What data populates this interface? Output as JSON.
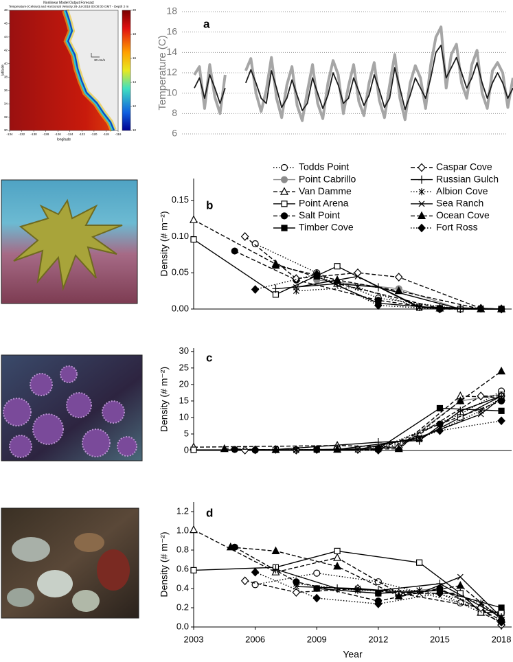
{
  "map": {
    "title": "Nonlinear Model Output Forecast",
    "subtitle": "Temperature (Celsius) and Horizontal Velocity 28-Jul-2018 00:00:00 GMT - Depth 2 m",
    "x_label": "longitude",
    "y_label": "latitude",
    "xticks": [
      -134,
      -132,
      -130,
      -128,
      -126,
      -124,
      -122,
      -120,
      -118,
      -116
    ],
    "yticks": [
      30,
      32,
      34,
      36,
      38,
      40,
      42,
      44,
      46,
      48
    ],
    "colorbar_ticks": [
      10,
      12,
      14,
      16,
      18,
      20
    ],
    "scale_label": "30 cm/s"
  },
  "chart_data": [
    {
      "type": "line",
      "panel_label": "a",
      "y_label": "Temperature (C)",
      "xlim": [
        2002.4,
        2018.2
      ],
      "ylim": [
        6,
        18
      ],
      "yticks": [
        6,
        8,
        10,
        12,
        14,
        16,
        18
      ],
      "grid": true,
      "x": [
        2003,
        2003.25,
        2003.5,
        2003.75,
        2004,
        2004.25,
        2004.5,
        2004.75,
        2005,
        2005.25,
        2005.5,
        2005.75,
        2006,
        2006.25,
        2006.5,
        2006.75,
        2007,
        2007.25,
        2007.5,
        2007.75,
        2008,
        2008.25,
        2008.5,
        2008.75,
        2009,
        2009.25,
        2009.5,
        2009.75,
        2010,
        2010.25,
        2010.5,
        2010.75,
        2011,
        2011.25,
        2011.5,
        2011.75,
        2012,
        2012.25,
        2012.5,
        2012.75,
        2013,
        2013.25,
        2013.5,
        2013.75,
        2014,
        2014.25,
        2014.5,
        2014.75,
        2015,
        2015.25,
        2015.5,
        2015.75,
        2016,
        2016.25,
        2016.5,
        2016.75,
        2017,
        2017.25,
        2017.5,
        2017.75,
        2018,
        2018.25,
        2018.5
      ],
      "series": [
        {
          "color": "#a6a6a6",
          "values": [
            11.8,
            12.6,
            8.5,
            12.8,
            9.6,
            8.0,
            11.8,
            null,
            null,
            null,
            12.2,
            13.4,
            10.0,
            8.2,
            10.3,
            13.5,
            9.5,
            7.6,
            10.8,
            12.6,
            8.8,
            7.3,
            10.2,
            12.8,
            9.0,
            7.5,
            11.0,
            13.2,
            11.8,
            8.0,
            10.7,
            12.8,
            9.2,
            7.8,
            11.0,
            13.0,
            9.3,
            7.6,
            10.8,
            13.8,
            9.5,
            7.4,
            11.0,
            12.7,
            11.5,
            8.5,
            12.8,
            15.5,
            16.5,
            10.5,
            13.8,
            14.8,
            11.0,
            9.5,
            12.8,
            14.2,
            10.0,
            8.5,
            12.2,
            13.0,
            12.0,
            8.6,
            11.5
          ]
        },
        {
          "color": "#1a1a1a",
          "values": [
            10.5,
            11.5,
            9.5,
            11.8,
            10.5,
            9.0,
            10.5,
            null,
            null,
            null,
            11.0,
            12.3,
            11.0,
            9.5,
            9.0,
            12.2,
            10.5,
            8.6,
            9.5,
            11.3,
            9.8,
            8.3,
            9.0,
            11.5,
            10.0,
            8.5,
            9.8,
            12.0,
            10.8,
            9.0,
            9.5,
            11.5,
            10.2,
            8.8,
            9.8,
            11.8,
            10.3,
            8.6,
            9.5,
            12.5,
            10.5,
            8.4,
            9.8,
            11.5,
            10.5,
            9.5,
            11.5,
            14.0,
            14.7,
            11.5,
            12.5,
            13.5,
            12.0,
            10.5,
            11.5,
            13.0,
            11.0,
            9.5,
            11.0,
            12.0,
            11.0,
            9.5,
            10.5
          ]
        }
      ]
    },
    {
      "type": "line",
      "panel_label": "b",
      "y_label": "Density (# m⁻²)",
      "xlim": [
        2003,
        2018.5
      ],
      "ylim": [
        0,
        0.18
      ],
      "yticks": [
        {
          "value": 0,
          "label": "0.00"
        },
        {
          "value": 0.05,
          "label": "0.05"
        },
        {
          "value": 0.1,
          "label": "0.10"
        },
        {
          "value": 0.15,
          "label": "0.15"
        }
      ],
      "series": [
        {
          "name": "Todds Point",
          "color": "#000000",
          "dash": "dotted",
          "marker": "circle-open",
          "x": [
            2006,
            2009,
            2012,
            2016,
            2018
          ],
          "values": [
            0.09,
            0.05,
            0.015,
            0,
            0
          ]
        },
        {
          "name": "Point Cabrillo",
          "color": "#8c8c8c",
          "dash": "solid",
          "marker": "circle",
          "x": [
            2009,
            2013,
            2016,
            2018
          ],
          "values": [
            0.04,
            0.028,
            0,
            0
          ]
        },
        {
          "name": "Van Damme",
          "color": "#000000",
          "dash": "dashed",
          "marker": "triangle-open",
          "x": [
            2003,
            2007,
            2010,
            2015,
            2017,
            2018
          ],
          "values": [
            0.123,
            0.062,
            0.035,
            0.001,
            0,
            0
          ]
        },
        {
          "name": "Point Arena",
          "color": "#000000",
          "dash": "solid",
          "marker": "square-open",
          "x": [
            2003,
            2007,
            2010,
            2014,
            2016,
            2018
          ],
          "values": [
            0.096,
            0.02,
            0.059,
            0.002,
            0,
            0
          ]
        },
        {
          "name": "Salt Point",
          "color": "#000000",
          "dash": "dashed",
          "marker": "circle",
          "x": [
            2005,
            2008,
            2012,
            2015,
            2018
          ],
          "values": [
            0.08,
            0.04,
            0.012,
            0,
            0
          ]
        },
        {
          "name": "Timber Cove",
          "color": "#000000",
          "dash": "solid",
          "marker": "square",
          "x": [
            2009,
            2012,
            2015,
            2018
          ],
          "values": [
            0.045,
            0.008,
            0.001,
            0
          ]
        },
        {
          "name": "Caspar Cove",
          "color": "#000000",
          "dash": "dashed",
          "marker": "diamond-open",
          "x": [
            2005.5,
            2008,
            2011,
            2013,
            2017,
            2018
          ],
          "values": [
            0.1,
            0.042,
            0.05,
            0.044,
            0.001,
            0
          ]
        },
        {
          "name": "Russian Gulch",
          "color": "#000000",
          "dash": "solid",
          "marker": "plus",
          "x": [
            2007,
            2010,
            2012,
            2016,
            2018
          ],
          "values": [
            0.028,
            0.035,
            0.03,
            0,
            0
          ]
        },
        {
          "name": "Albion Cove",
          "color": "#000000",
          "dash": "dotted",
          "marker": "asterisk",
          "x": [
            2008,
            2011,
            2014,
            2017,
            2018
          ],
          "values": [
            0.025,
            0.03,
            0.002,
            0,
            0
          ]
        },
        {
          "name": "Sea Ranch",
          "color": "#000000",
          "dash": "solid",
          "marker": "x",
          "x": [
            2008,
            2011,
            2014,
            2017,
            2018
          ],
          "values": [
            0.03,
            0.045,
            0.003,
            0.001,
            0
          ]
        },
        {
          "name": "Ocean Cove",
          "color": "#000000",
          "dash": "dashed",
          "marker": "triangle",
          "x": [
            2007,
            2010,
            2013,
            2017,
            2018
          ],
          "values": [
            0.06,
            0.04,
            0.025,
            0,
            0
          ]
        },
        {
          "name": "Fort Ross",
          "color": "#000000",
          "dash": "dotted",
          "marker": "diamond",
          "x": [
            2006,
            2009,
            2012,
            2015,
            2018
          ],
          "values": [
            0.027,
            0.048,
            0.005,
            0,
            0
          ]
        }
      ]
    },
    {
      "type": "line",
      "panel_label": "c",
      "y_label": "Density (# m⁻²)",
      "xlim": [
        2003,
        2018.5
      ],
      "ylim": [
        0,
        31
      ],
      "yticks": [
        0,
        5,
        10,
        15,
        20,
        25,
        30
      ],
      "series": [
        {
          "color": "#000000",
          "dash": "dotted",
          "marker": "circle-open",
          "x": [
            2006,
            2009,
            2012,
            2016,
            2018
          ],
          "values": [
            0.1,
            0.2,
            0.5,
            11,
            18
          ]
        },
        {
          "color": "#8c8c8c",
          "dash": "solid",
          "marker": "circle",
          "x": [
            2009,
            2013,
            2016,
            2018
          ],
          "values": [
            0.2,
            1,
            15,
            17
          ]
        },
        {
          "color": "#000000",
          "dash": "dashed",
          "marker": "triangle-open",
          "x": [
            2003,
            2010,
            2013,
            2016,
            2018
          ],
          "values": [
            1,
            1.5,
            1,
            16.5,
            16
          ]
        },
        {
          "color": "#000000",
          "dash": "solid",
          "marker": "square-open",
          "x": [
            2003,
            2007,
            2010,
            2014,
            2016,
            2018
          ],
          "values": [
            0.2,
            0.2,
            0.3,
            3.5,
            10,
            16.5
          ]
        },
        {
          "color": "#000000",
          "dash": "dashed",
          "marker": "circle",
          "x": [
            2005,
            2008,
            2012,
            2015,
            2018
          ],
          "values": [
            0.3,
            0.2,
            0.3,
            8,
            15
          ]
        },
        {
          "color": "#000000",
          "dash": "solid",
          "marker": "square",
          "x": [
            2009,
            2012,
            2015,
            2018
          ],
          "values": [
            0.3,
            0.5,
            12.8,
            12
          ]
        },
        {
          "color": "#000000",
          "dash": "dashed",
          "marker": "diamond-open",
          "x": [
            2005.5,
            2008,
            2011,
            2013,
            2017,
            2018
          ],
          "values": [
            0.1,
            0.1,
            0.3,
            1,
            16.5,
            16.5
          ]
        },
        {
          "color": "#000000",
          "dash": "solid",
          "marker": "plus",
          "x": [
            2007,
            2012,
            2014,
            2016,
            2018
          ],
          "values": [
            0.3,
            2.5,
            3,
            12,
            16.5
          ]
        },
        {
          "color": "#000000",
          "dash": "dotted",
          "marker": "asterisk",
          "x": [
            2008,
            2011,
            2014,
            2017,
            2018
          ],
          "values": [
            0.2,
            0.3,
            3.5,
            12,
            16
          ]
        },
        {
          "color": "#000000",
          "dash": "solid",
          "marker": "x",
          "x": [
            2008,
            2011,
            2014,
            2017,
            2018
          ],
          "values": [
            0.1,
            0.3,
            4,
            11,
            16
          ]
        },
        {
          "color": "#000000",
          "dash": "dashed",
          "marker": "triangle",
          "x": [
            2004.5,
            2007,
            2010,
            2013,
            2016,
            2018
          ],
          "values": [
            0.5,
            0.2,
            0.3,
            0.5,
            15,
            24
          ]
        },
        {
          "color": "#000000",
          "dash": "dotted",
          "marker": "diamond",
          "x": [
            2006,
            2009,
            2012,
            2015,
            2018
          ],
          "values": [
            0.2,
            0.3,
            0.1,
            6,
            9
          ]
        }
      ]
    },
    {
      "type": "line",
      "panel_label": "d",
      "y_label": "Density (# m⁻²)",
      "x_label": "Year",
      "xlim": [
        2003,
        2018.5
      ],
      "xticks": [
        2003,
        2006,
        2009,
        2012,
        2015,
        2018
      ],
      "ylim": [
        0,
        1.3
      ],
      "yticks": [
        {
          "value": 0,
          "label": "0.0"
        },
        0.2,
        0.4,
        0.6,
        0.8,
        {
          "value": 1,
          "label": "1.0"
        },
        1.2
      ],
      "series": [
        {
          "color": "#000000",
          "dash": "dotted",
          "marker": "circle-open",
          "x": [
            2006,
            2009,
            2012,
            2016,
            2018
          ],
          "values": [
            0.44,
            0.56,
            0.47,
            0.25,
            0.15
          ]
        },
        {
          "color": "#8c8c8c",
          "dash": "solid",
          "marker": "circle",
          "x": [
            2009,
            2012,
            2015,
            2017,
            2018
          ],
          "values": [
            0.4,
            0.35,
            0.4,
            0.18,
            0.15
          ]
        },
        {
          "color": "#000000",
          "dash": "dashed",
          "marker": "triangle-open",
          "x": [
            2003,
            2007,
            2010,
            2013,
            2016,
            2017,
            2018
          ],
          "values": [
            1.01,
            0.57,
            0.72,
            0.35,
            0.35,
            0.15,
            0.05
          ]
        },
        {
          "color": "#000000",
          "dash": "solid",
          "marker": "square-open",
          "x": [
            2003,
            2007,
            2010,
            2014,
            2016,
            2017,
            2018
          ],
          "values": [
            0.59,
            0.62,
            0.79,
            0.67,
            0.35,
            0.15,
            0.15
          ]
        },
        {
          "color": "#000000",
          "dash": "dashed",
          "marker": "circle",
          "x": [
            2005,
            2008,
            2012,
            2015,
            2018
          ],
          "values": [
            0.83,
            0.47,
            0.27,
            0.4,
            0.07
          ]
        },
        {
          "color": "#000000",
          "dash": "solid",
          "marker": "square",
          "x": [
            2009,
            2012,
            2015,
            2018
          ],
          "values": [
            0.4,
            0.35,
            0.38,
            0.2
          ]
        },
        {
          "color": "#000000",
          "dash": "dashed",
          "marker": "diamond-open",
          "x": [
            2005.5,
            2008,
            2011,
            2013,
            2017,
            2018
          ],
          "values": [
            0.48,
            0.36,
            0.4,
            0.35,
            0.2,
            0.02
          ]
        },
        {
          "color": "#000000",
          "dash": "solid",
          "marker": "plus",
          "x": [
            2007,
            2010,
            2012,
            2015,
            2018
          ],
          "values": [
            0.6,
            0.4,
            0.38,
            0.45,
            0.1
          ]
        },
        {
          "color": "#000000",
          "dash": "dotted",
          "marker": "asterisk",
          "x": [
            2008,
            2011,
            2014,
            2017,
            2018
          ],
          "values": [
            0.45,
            0.38,
            0.38,
            0.25,
            0.1
          ]
        },
        {
          "color": "#000000",
          "dash": "solid",
          "marker": "x",
          "x": [
            2008,
            2011,
            2014,
            2016,
            2018
          ],
          "values": [
            0.42,
            0.4,
            0.35,
            0.52,
            0.1
          ]
        },
        {
          "color": "#000000",
          "dash": "dashed",
          "marker": "triangle",
          "x": [
            2004.8,
            2007,
            2010,
            2013,
            2016,
            2018
          ],
          "values": [
            0.83,
            0.79,
            0.63,
            0.32,
            0.43,
            0.08
          ]
        },
        {
          "color": "#000000",
          "dash": "dotted",
          "marker": "diamond",
          "x": [
            2006,
            2009,
            2012,
            2015,
            2018
          ],
          "values": [
            0.57,
            0.3,
            0.24,
            0.35,
            0.05
          ]
        }
      ]
    }
  ]
}
